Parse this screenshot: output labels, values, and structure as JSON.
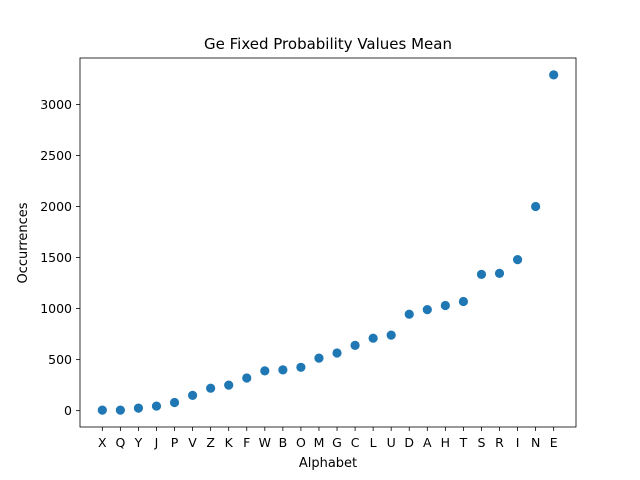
{
  "chart_data": {
    "type": "scatter",
    "title": "Ge Fixed Probability Values Mean",
    "xlabel": "Alphabet",
    "ylabel": "Occurrences",
    "categories": [
      "X",
      "Q",
      "Y",
      "J",
      "P",
      "V",
      "Z",
      "K",
      "F",
      "W",
      "B",
      "O",
      "M",
      "G",
      "C",
      "L",
      "U",
      "D",
      "A",
      "H",
      "T",
      "S",
      "R",
      "I",
      "N",
      "E"
    ],
    "values": [
      5,
      5,
      25,
      45,
      80,
      150,
      220,
      250,
      320,
      390,
      400,
      425,
      515,
      565,
      640,
      710,
      740,
      945,
      990,
      1030,
      1070,
      1335,
      1345,
      1480,
      2000,
      3290
    ],
    "ylim": [
      -160,
      3455
    ],
    "yticks": [
      0,
      500,
      1000,
      1500,
      2000,
      2500,
      3000
    ],
    "grid": false,
    "color": "#1f77b4"
  }
}
